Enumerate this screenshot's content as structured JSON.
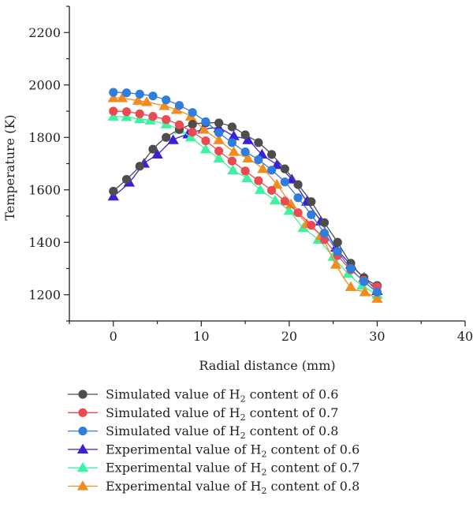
{
  "chart_data": {
    "type": "line",
    "xlabel": "Radial distance (mm)",
    "ylabel": "Temperature (K)",
    "xlim": [
      -5,
      40
    ],
    "ylim": [
      1100,
      2300
    ],
    "xticks": [
      0,
      10,
      20,
      30,
      40
    ],
    "yticks": [
      1200,
      1400,
      1600,
      1800,
      2000,
      2200
    ],
    "grid": false,
    "legend_position": "bottom",
    "series": [
      {
        "name_prefix": "Simulated value of H",
        "name_sub": "2",
        "name_suffix": " content of 0.6",
        "marker": "circle",
        "color": "#4d4d4d",
        "x": [
          0,
          1.5,
          3,
          4.5,
          6,
          7.5,
          9,
          10.5,
          12,
          13.5,
          15,
          16.5,
          18,
          19.5,
          21,
          22.5,
          24,
          25.5,
          27,
          28.5,
          30
        ],
        "y": [
          1595,
          1640,
          1690,
          1755,
          1800,
          1830,
          1850,
          1855,
          1855,
          1840,
          1810,
          1780,
          1735,
          1680,
          1620,
          1555,
          1475,
          1400,
          1320,
          1265,
          1235
        ]
      },
      {
        "name_prefix": "Simulated value of H",
        "name_sub": "2",
        "name_suffix": " content of 0.7",
        "marker": "circle",
        "color": "#ea4a54",
        "x": [
          0,
          1.5,
          3,
          4.5,
          6,
          7.5,
          9,
          10.5,
          12,
          13.5,
          15,
          16.5,
          18,
          19.5,
          21,
          22.5,
          24,
          25.5,
          27,
          28.5,
          30
        ],
        "y": [
          1900,
          1898,
          1890,
          1880,
          1868,
          1848,
          1820,
          1787,
          1748,
          1710,
          1672,
          1635,
          1598,
          1557,
          1513,
          1465,
          1410,
          1350,
          1295,
          1255,
          1230
        ]
      },
      {
        "name_prefix": "Simulated value of H",
        "name_sub": "2",
        "name_suffix": " content of 0.8",
        "marker": "circle",
        "color": "#2f7ddc",
        "x": [
          0,
          1.5,
          3,
          4.5,
          6,
          7.5,
          9,
          10.5,
          12,
          13.5,
          15,
          16.5,
          18,
          19.5,
          21,
          22.5,
          24,
          25.5,
          27,
          28.5,
          30
        ],
        "y": [
          1972,
          1970,
          1965,
          1958,
          1943,
          1922,
          1895,
          1860,
          1818,
          1780,
          1745,
          1715,
          1675,
          1630,
          1570,
          1505,
          1435,
          1365,
          1300,
          1250,
          1210
        ]
      },
      {
        "name_prefix": "Experimental value of H",
        "name_sub": "2",
        "name_suffix": " content of 0.6",
        "marker": "triangle",
        "color": "#3a20d9",
        "x": [
          0,
          1.8,
          3.5,
          5,
          6.8,
          8.5,
          10.2,
          12,
          13.7,
          15.3,
          16.9,
          18.6,
          20.3,
          22,
          23.6,
          25.3,
          27,
          28.5,
          30
        ],
        "y": [
          1575,
          1628,
          1700,
          1735,
          1790,
          1812,
          1830,
          1835,
          1805,
          1790,
          1735,
          1695,
          1640,
          1555,
          1480,
          1380,
          1315,
          1265,
          1215
        ]
      },
      {
        "name_prefix": "Experimental value of H",
        "name_sub": "2",
        "name_suffix": " content of 0.7",
        "marker": "triangle",
        "color": "#3df2a1",
        "x": [
          0,
          1.5,
          3,
          4.2,
          6,
          7.5,
          8.8,
          10.5,
          12,
          13.6,
          15.2,
          16.7,
          18.4,
          20,
          21.6,
          23.3,
          25,
          26.7,
          28.3,
          30
        ],
        "y": [
          1880,
          1878,
          1870,
          1865,
          1850,
          1830,
          1800,
          1755,
          1720,
          1675,
          1645,
          1600,
          1560,
          1520,
          1455,
          1410,
          1345,
          1280,
          1235,
          1200
        ]
      },
      {
        "name_prefix": "Experimental value of H",
        "name_sub": "2",
        "name_suffix": " content of 0.8",
        "marker": "triangle",
        "color": "#f28c1d",
        "x": [
          0,
          1,
          2.8,
          3.8,
          5.8,
          7.2,
          8.8,
          10.3,
          12,
          13.7,
          15.3,
          17,
          18.6,
          20.2,
          22,
          23.6,
          25.3,
          27,
          28.6,
          30
        ],
        "y": [
          1950,
          1950,
          1940,
          1935,
          1920,
          1905,
          1880,
          1830,
          1790,
          1745,
          1720,
          1680,
          1620,
          1545,
          1470,
          1425,
          1315,
          1230,
          1210,
          1185
        ]
      }
    ]
  }
}
